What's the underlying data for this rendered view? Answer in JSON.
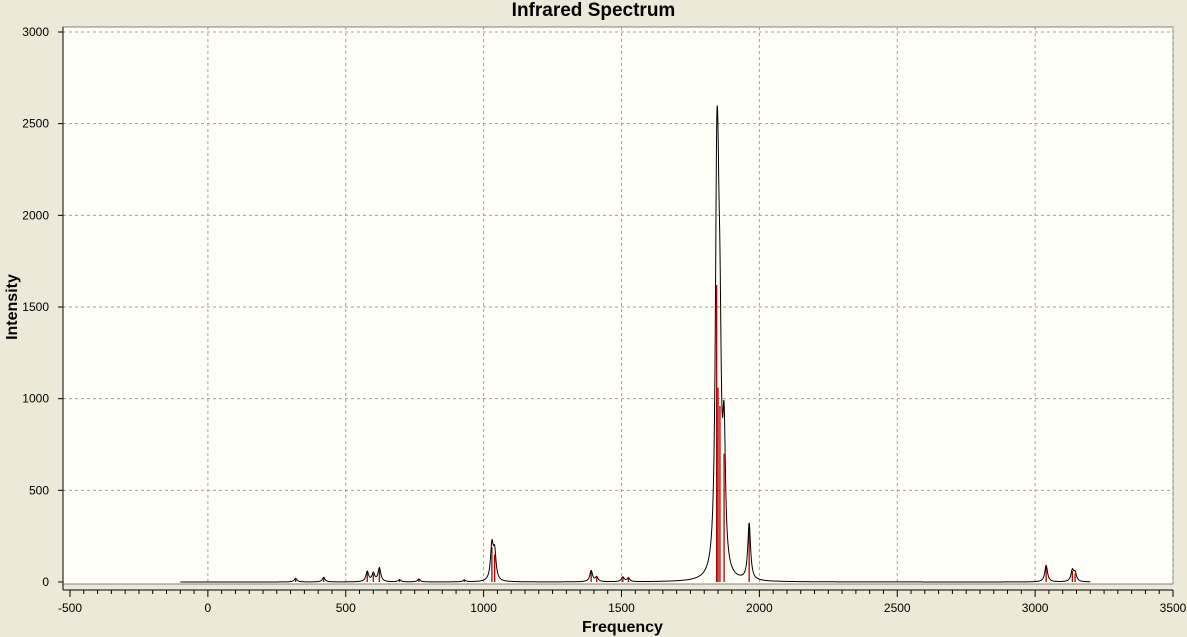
{
  "chart_data": {
    "type": "line",
    "title": "Infrared Spectrum",
    "xlabel": "Frequency",
    "ylabel": "Intensity",
    "xlim": [
      -500,
      3500
    ],
    "ylim": [
      0,
      3000
    ],
    "x_ticks": [
      -500,
      0,
      500,
      1000,
      1500,
      2000,
      2500,
      3000,
      3500
    ],
    "y_ticks": [
      0,
      500,
      1000,
      1500,
      2000,
      2500,
      3000
    ],
    "grid": true,
    "spectrum_range": [
      -100,
      3200
    ],
    "sticks": [
      {
        "freq": 318,
        "intensity": 20
      },
      {
        "freq": 420,
        "intensity": 25
      },
      {
        "freq": 578,
        "intensity": 55
      },
      {
        "freq": 600,
        "intensity": 45
      },
      {
        "freq": 622,
        "intensity": 75
      },
      {
        "freq": 695,
        "intensity": 12
      },
      {
        "freq": 765,
        "intensity": 15
      },
      {
        "freq": 930,
        "intensity": 10
      },
      {
        "freq": 1030,
        "intensity": 190
      },
      {
        "freq": 1040,
        "intensity": 150
      },
      {
        "freq": 1390,
        "intensity": 60
      },
      {
        "freq": 1410,
        "intensity": 25
      },
      {
        "freq": 1505,
        "intensity": 25
      },
      {
        "freq": 1525,
        "intensity": 20
      },
      {
        "freq": 1845,
        "intensity": 1620
      },
      {
        "freq": 1850,
        "intensity": 1060
      },
      {
        "freq": 1857,
        "intensity": 960
      },
      {
        "freq": 1872,
        "intensity": 700
      },
      {
        "freq": 1963,
        "intensity": 310
      },
      {
        "freq": 3040,
        "intensity": 90
      },
      {
        "freq": 3135,
        "intensity": 60
      },
      {
        "freq": 3145,
        "intensity": 45
      }
    ],
    "peak_width": 6,
    "colors": {
      "spectrum": "#000000",
      "sticks": "#b00000",
      "plot_background": "#fffff8",
      "grid": "#a0a0a0",
      "window_background": "#ece9d8"
    }
  }
}
